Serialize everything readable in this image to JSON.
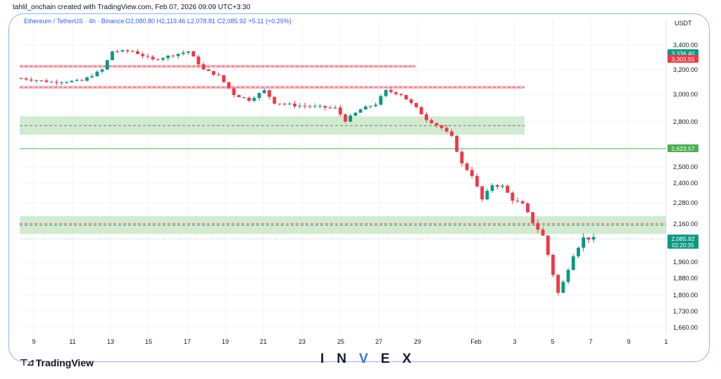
{
  "header": {
    "credit": "tahlil_onchain created with TradingView.com, Feb 07, 2026 09:09 UTC+3:30"
  },
  "legend": {
    "symbol": "Ethereum / TetherUS · 4h · Binance",
    "ohlc": "O2,080.80 H2,119.46 L2,078.81 C2,085.92 +5.11 (+0.25%)"
  },
  "chart_data": {
    "type": "candlestick",
    "currency_label": "USDT",
    "y_ticks": [
      3400,
      3200,
      3000,
      2800,
      2623.57,
      2500,
      2400,
      2280,
      2160,
      2085.92,
      1960,
      1880,
      1800,
      1730,
      1660
    ],
    "y_tick_labels": [
      "3,400.00",
      "3,200.00",
      "3,000.00",
      "2,800.00",
      "",
      "2,500.00",
      "2,400.00",
      "2,280.00",
      "2,160.00",
      "",
      "1,960.00",
      "1,880.00",
      "1,800.00",
      "1,730.00",
      "1,660.00"
    ],
    "x_tick_labels": [
      "9",
      "11",
      "13",
      "15",
      "17",
      "19",
      "21",
      "23",
      "25",
      "27",
      "29",
      "Feb",
      "3",
      "5",
      "7",
      "9",
      "1"
    ],
    "price_badges": [
      {
        "label": "3,336.40",
        "color": "#089981"
      },
      {
        "label": "3,303.55",
        "color": "#f23645"
      },
      {
        "label": "2,623.57",
        "color": "#4caf50"
      },
      {
        "label": "2,085.92",
        "sub": "02:20:35",
        "color": "#089981"
      }
    ],
    "zones": [
      {
        "kind": "resistance",
        "low": 3215,
        "high": 3240,
        "color": "#f7b9c0"
      },
      {
        "kind": "resistance",
        "low": 3045,
        "high": 3070,
        "color": "#f7b9c0"
      },
      {
        "kind": "support",
        "low": 2715,
        "high": 2840,
        "color": "#c9e7c8"
      },
      {
        "kind": "support",
        "low": 2110,
        "high": 2205,
        "color": "#c9e7c8"
      }
    ],
    "horizontal_line": {
      "price": 2623.57,
      "color": "#4caf50"
    },
    "key_points": [
      [
        0,
        3130
      ],
      [
        6,
        3100
      ],
      [
        12,
        3110
      ],
      [
        16,
        3200
      ],
      [
        18,
        3350
      ],
      [
        22,
        3350
      ],
      [
        26,
        3280
      ],
      [
        30,
        3320
      ],
      [
        33,
        3350
      ],
      [
        36,
        3200
      ],
      [
        39,
        3150
      ],
      [
        42,
        3000
      ],
      [
        45,
        2960
      ],
      [
        48,
        3030
      ],
      [
        50,
        2940
      ],
      [
        54,
        2920
      ],
      [
        58,
        2910
      ],
      [
        62,
        2900
      ],
      [
        64,
        2810
      ],
      [
        67,
        2890
      ],
      [
        70,
        2930
      ],
      [
        72,
        3030
      ],
      [
        75,
        3000
      ],
      [
        78,
        2900
      ],
      [
        80,
        2820
      ],
      [
        83,
        2760
      ],
      [
        85,
        2700
      ],
      [
        87,
        2520
      ],
      [
        89,
        2450
      ],
      [
        91,
        2300
      ],
      [
        93,
        2390
      ],
      [
        95,
        2380
      ],
      [
        97,
        2300
      ],
      [
        99,
        2270
      ],
      [
        101,
        2170
      ],
      [
        103,
        2100
      ],
      [
        105,
        1900
      ],
      [
        106,
        1810
      ],
      [
        107,
        1860
      ],
      [
        109,
        2000
      ],
      [
        111,
        2090
      ],
      [
        113,
        2086
      ]
    ],
    "candle_count": 114,
    "colors": {
      "up": "#089981",
      "down": "#f23645"
    }
  },
  "branding": {
    "tradingview": "TradingView",
    "invex_left": "IN",
    "invex_mid": "V",
    "invex_right": "EX"
  }
}
